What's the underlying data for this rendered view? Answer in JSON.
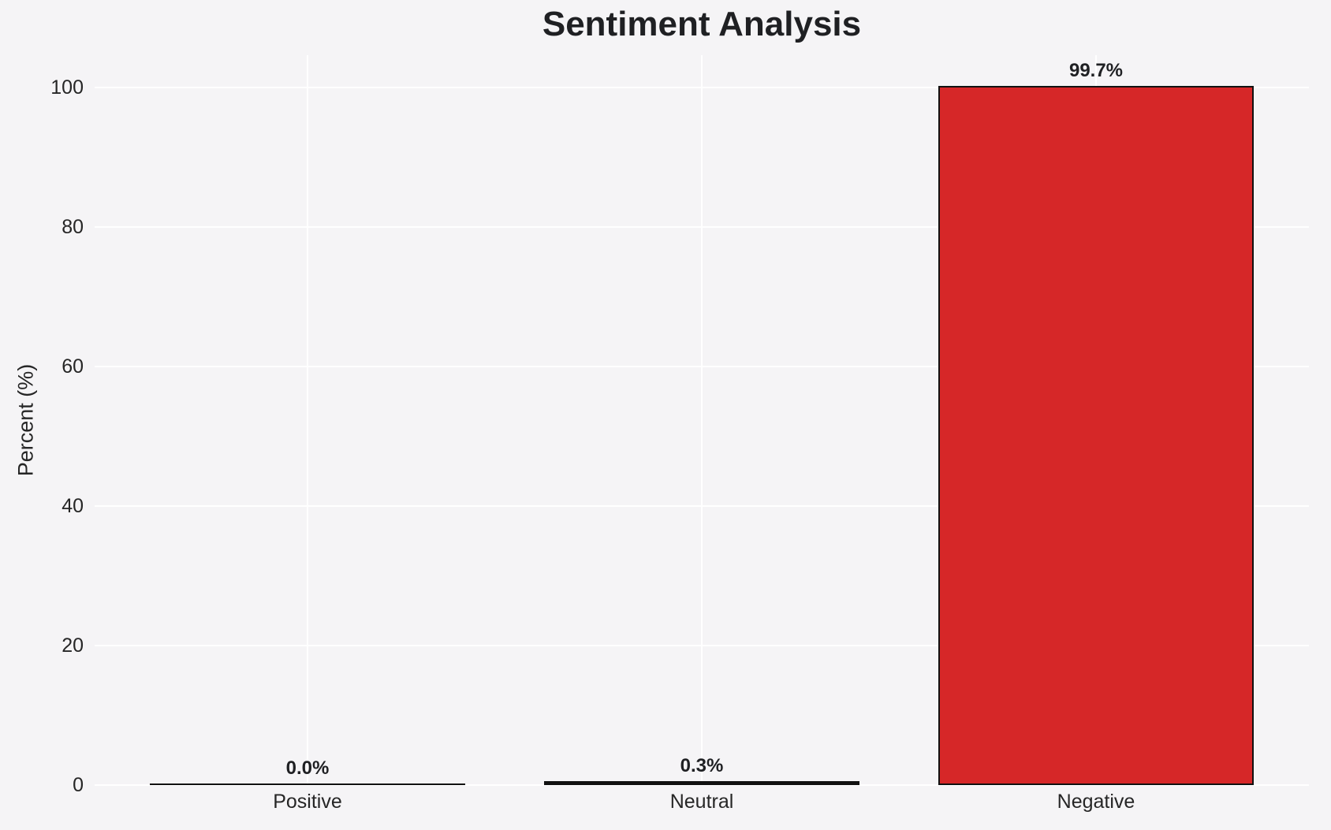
{
  "chart_data": {
    "type": "bar",
    "title": "Sentiment Analysis",
    "xlabel": "",
    "ylabel": "Percent (%)",
    "categories": [
      "Positive",
      "Neutral",
      "Negative"
    ],
    "values": [
      0.0,
      0.3,
      99.7
    ],
    "value_labels": [
      "0.0%",
      "0.3%",
      "99.7%"
    ],
    "bar_colors": [
      "#2ca02c",
      "#7f7f7f",
      "#d62728"
    ],
    "bar_edge_color": "#111111",
    "yticks": [
      0,
      20,
      40,
      60,
      80,
      100
    ],
    "ylim": [
      0,
      104.6
    ],
    "grid": true,
    "gridline_color": "#ffffff",
    "background_color": "#f5f4f6",
    "text_color": "#262626",
    "legend": "none"
  }
}
